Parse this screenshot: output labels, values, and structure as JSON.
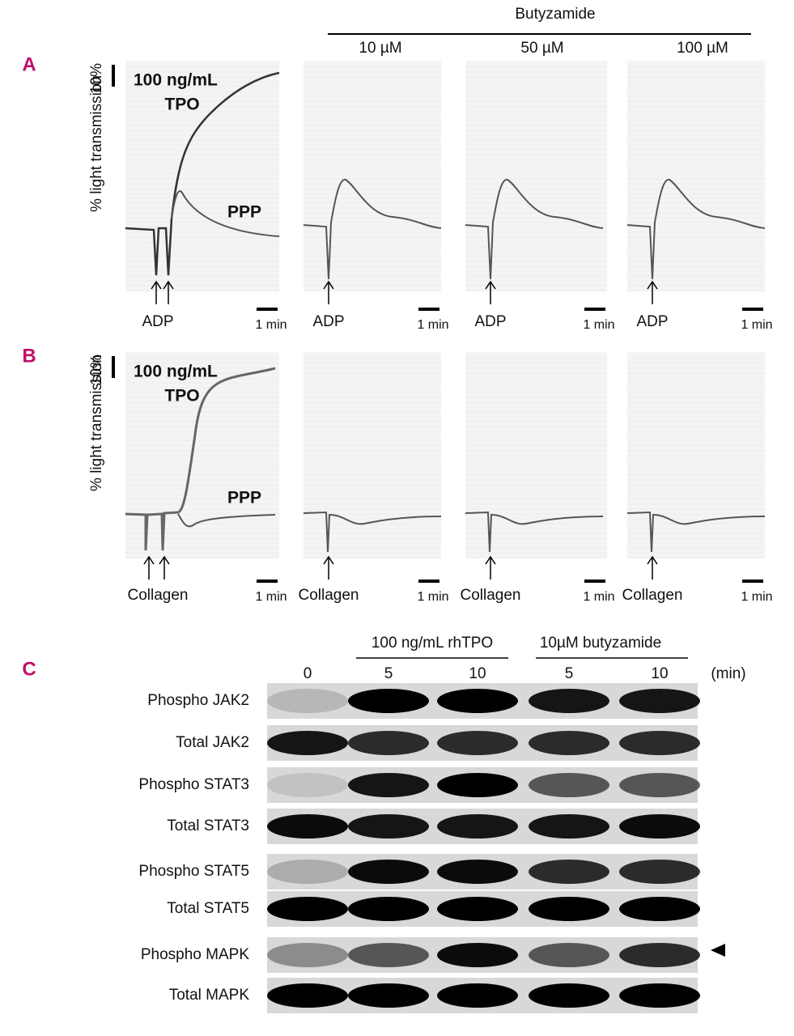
{
  "header": {
    "compound": "Butyzamide",
    "concentrations": [
      "10 µM",
      "50 µM",
      "100 µM"
    ]
  },
  "panels": [
    {
      "label": "A",
      "y_label": "% light transmission",
      "scale_y": "10%",
      "dose": "100 ng/mL",
      "tpo": "TPO",
      "ppp": "PPP",
      "agonist": "ADP",
      "scale_x": "1 min"
    },
    {
      "label": "B",
      "y_label": "% light transmission",
      "scale_y": "10%",
      "dose": "100 ng/mL",
      "tpo": "TPO",
      "ppp": "PPP",
      "agonist": "Collagen",
      "scale_x": "1 min"
    }
  ],
  "blot": {
    "label": "C",
    "groups": [
      "100 ng/mL rhTPO",
      "10µM butyzamide"
    ],
    "times": [
      "0",
      "5",
      "10",
      "5",
      "10"
    ],
    "unit": "(min)",
    "rows": [
      "Phospho JAK2",
      "Total JAK2",
      "Phospho STAT3",
      "Total STAT3",
      "Phospho STAT5",
      "Total STAT5",
      "Phospho MAPK",
      "Total MAPK"
    ]
  }
}
